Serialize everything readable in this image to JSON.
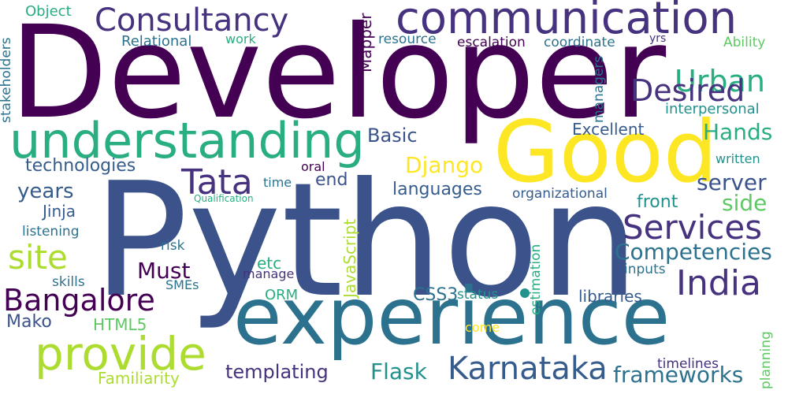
{
  "palette": {
    "dark_purple": "#440154",
    "indigo": "#46327e",
    "blue": "#3b528b",
    "steel_blue": "#365c8d",
    "teal_blue": "#2c728e",
    "teal": "#21918c",
    "sea_green": "#28ae80",
    "green": "#5ec962",
    "lime": "#addc30",
    "yellow": "#fde725"
  },
  "words": {
    "python": "Python",
    "developer": "Developer",
    "experience": "experience",
    "good": "Good",
    "understanding": "understanding",
    "communication": "communication",
    "consultancy": "Consultancy",
    "provide": "provide",
    "karnataka": "Karnataka",
    "bangalore": "Bangalore",
    "india": "India",
    "services": "Services",
    "tata": "Tata",
    "site": "site",
    "urban": "Urban",
    "desired": "Desired",
    "competencies": "Competencies",
    "frameworks": "frameworks",
    "hands": "Hands",
    "server": "server",
    "side": "side",
    "django": "Django",
    "flask": "Flask",
    "templating": "templating",
    "languages": "languages",
    "years": "years",
    "must": "Must",
    "technologies": "technologies",
    "basic": "Basic",
    "excellent": "Excellent",
    "interpersonal": "interpersonal",
    "written": "written",
    "front": "front",
    "end": "end",
    "oral": "oral",
    "jinja": "Jinja",
    "mako": "Mako",
    "html5": "HTML5",
    "css3": "CSS3",
    "orm": "ORM",
    "libraries": "libraries",
    "familiarity": "Familiarity",
    "timelines": "timelines",
    "status": "status",
    "inputs": "inputs",
    "etc": "etc",
    "manage": "manage",
    "smes": "SMEs",
    "skills": "skills",
    "risk": "risk",
    "listening": "listening",
    "time": "time",
    "qualification": "Qualification",
    "organizational": "organizational",
    "come": "come",
    "object": "Object",
    "relational": "Relational",
    "work": "work",
    "resource": "resource",
    "escalation": "escalation",
    "coordinate": "coordinate",
    "yrs": "yrs",
    "ability": "Ability",
    "stakeholders": "stakeholders",
    "mapper": "Mapper",
    "managers": "managers",
    "javascript": "JavaScript",
    "estimation": "estimation",
    "planning": "planning"
  }
}
